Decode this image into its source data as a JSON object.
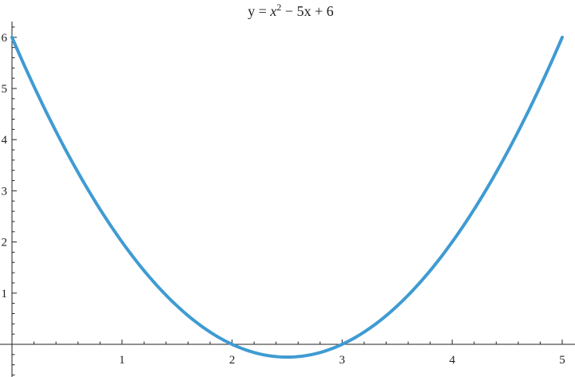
{
  "chart_data": {
    "type": "line",
    "title": "y = x^2 − 5x + 6",
    "title_parts": {
      "lhs": "y = ",
      "var": "x",
      "exp": "2",
      "rest": " − 5x + 6"
    },
    "xlabel": "",
    "ylabel": "",
    "xlim": [
      0,
      5
    ],
    "ylim": [
      -0.64,
      6.73
    ],
    "x_ticks": [
      "1",
      "2",
      "3",
      "4",
      "5"
    ],
    "y_ticks": [
      "1",
      "2",
      "3",
      "4",
      "5",
      "6"
    ],
    "grid": false,
    "function": "x^2 - 5x + 6",
    "series": [
      {
        "color": "#3f9bd2",
        "x": [
          0,
          0.5,
          1,
          1.5,
          2,
          2.5,
          3,
          3.5,
          4,
          4.5,
          5
        ],
        "y": [
          6,
          3.75,
          2,
          0.75,
          0,
          -0.25,
          0,
          0.75,
          2,
          3.75,
          6
        ]
      }
    ]
  }
}
